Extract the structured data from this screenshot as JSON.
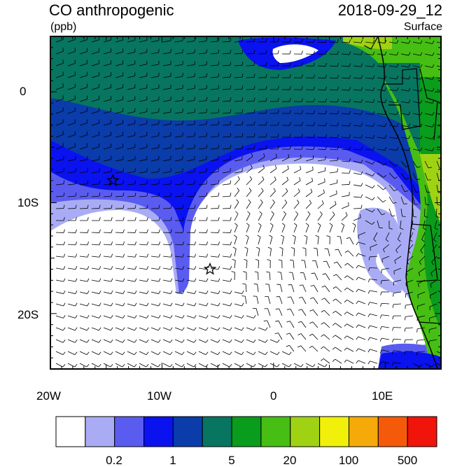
{
  "header": {
    "title": "CO anthropogenic",
    "units": "(ppb)",
    "datetime": "2018-09-29_12",
    "level": "Surface"
  },
  "map": {
    "lon_range": [
      -20,
      15
    ],
    "lat_range": [
      -25,
      5
    ],
    "lon_ticks": [
      {
        "value": -20,
        "label": "20W"
      },
      {
        "value": -10,
        "label": "10W"
      },
      {
        "value": 0,
        "label": "0"
      },
      {
        "value": 10,
        "label": "10E"
      }
    ],
    "lat_ticks": [
      {
        "value": 0,
        "label": "0"
      },
      {
        "value": -10,
        "label": "10S"
      },
      {
        "value": -20,
        "label": "20S"
      }
    ],
    "markers": [
      {
        "lon": -14.4,
        "lat": -8.0,
        "symbol": "star"
      },
      {
        "lon": -5.7,
        "lat": -16.0,
        "symbol": "star"
      }
    ],
    "wind_barbs": true
  },
  "colorbar": {
    "colors": [
      "#ffffff",
      "#a9acf5",
      "#5a5cf0",
      "#0a12f0",
      "#0a3caa",
      "#077560",
      "#0a9c1c",
      "#46be14",
      "#a0d214",
      "#f0f00a",
      "#f5aa0a",
      "#f55a0a",
      "#f0140a"
    ],
    "labels": [
      {
        "text": "0.2",
        "boundary": 2
      },
      {
        "text": "1",
        "boundary": 4
      },
      {
        "text": "5",
        "boundary": 6
      },
      {
        "text": "20",
        "boundary": 8
      },
      {
        "text": "100",
        "boundary": 10
      },
      {
        "text": "500",
        "boundary": 12
      }
    ]
  }
}
